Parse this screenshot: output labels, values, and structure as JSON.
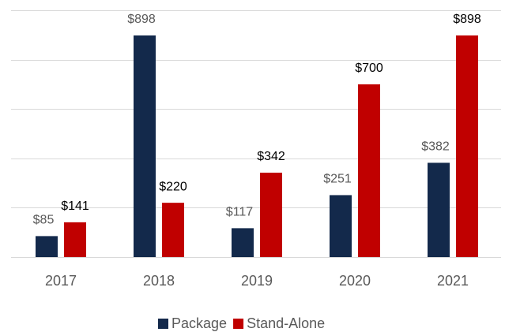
{
  "chart_data": {
    "type": "bar",
    "categories": [
      "2017",
      "2018",
      "2019",
      "2020",
      "2021"
    ],
    "series": [
      {
        "name": "Package",
        "color": "#13294b",
        "values": [
          85,
          898,
          117,
          251,
          382
        ],
        "value_labels": [
          "$85",
          "$898",
          "$117",
          "$251",
          "$382"
        ]
      },
      {
        "name": "Stand-Alone",
        "color": "#c00000",
        "values": [
          141,
          220,
          342,
          700,
          898
        ],
        "value_labels": [
          "$141",
          "$220",
          "$342",
          "$700",
          "$898"
        ]
      }
    ],
    "ylim": [
      0,
      1000
    ],
    "yticks": [
      0,
      200,
      400,
      600,
      800,
      1000
    ],
    "grid": true,
    "legend": "bottom"
  }
}
